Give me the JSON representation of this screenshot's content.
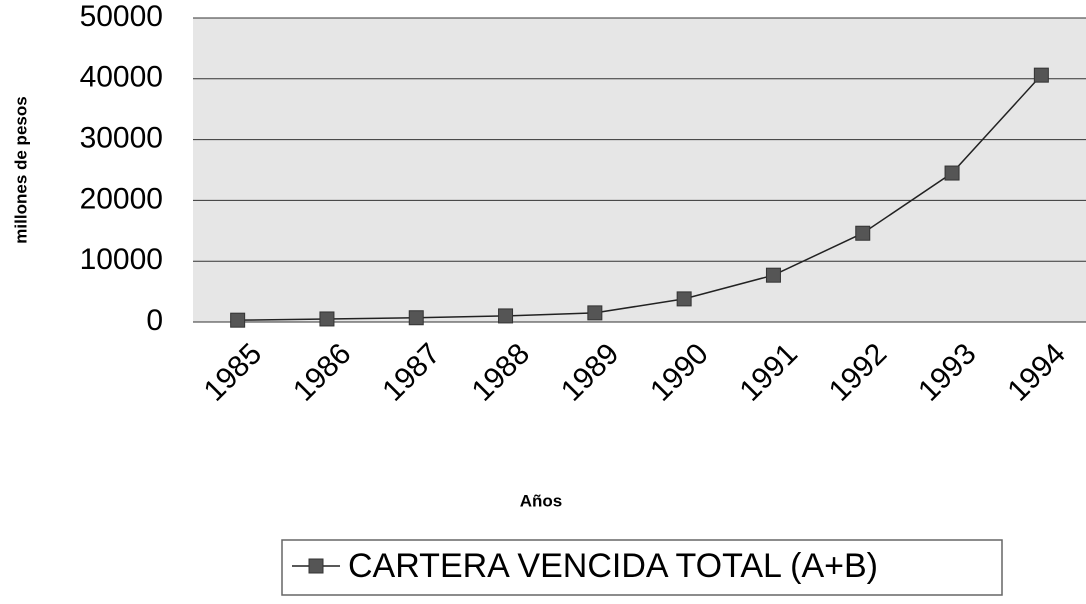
{
  "chart_data": {
    "type": "line",
    "y_label": "millones de pesos",
    "x_label": "Años",
    "categories": [
      "1985",
      "1986",
      "1987",
      "1988",
      "1989",
      "1990",
      "1991",
      "1992",
      "1993",
      "1994"
    ],
    "series": [
      {
        "name": "CARTERA VENCIDA TOTAL (A+B)",
        "color": "#555555",
        "values": [
          300,
          500,
          700,
          1000,
          1500,
          3800,
          7700,
          14600,
          24500,
          40600
        ]
      }
    ],
    "ylim": [
      0,
      50000
    ],
    "yticks": [
      0,
      10000,
      20000,
      30000,
      40000,
      50000
    ],
    "grid": true,
    "legend": "bottom"
  }
}
